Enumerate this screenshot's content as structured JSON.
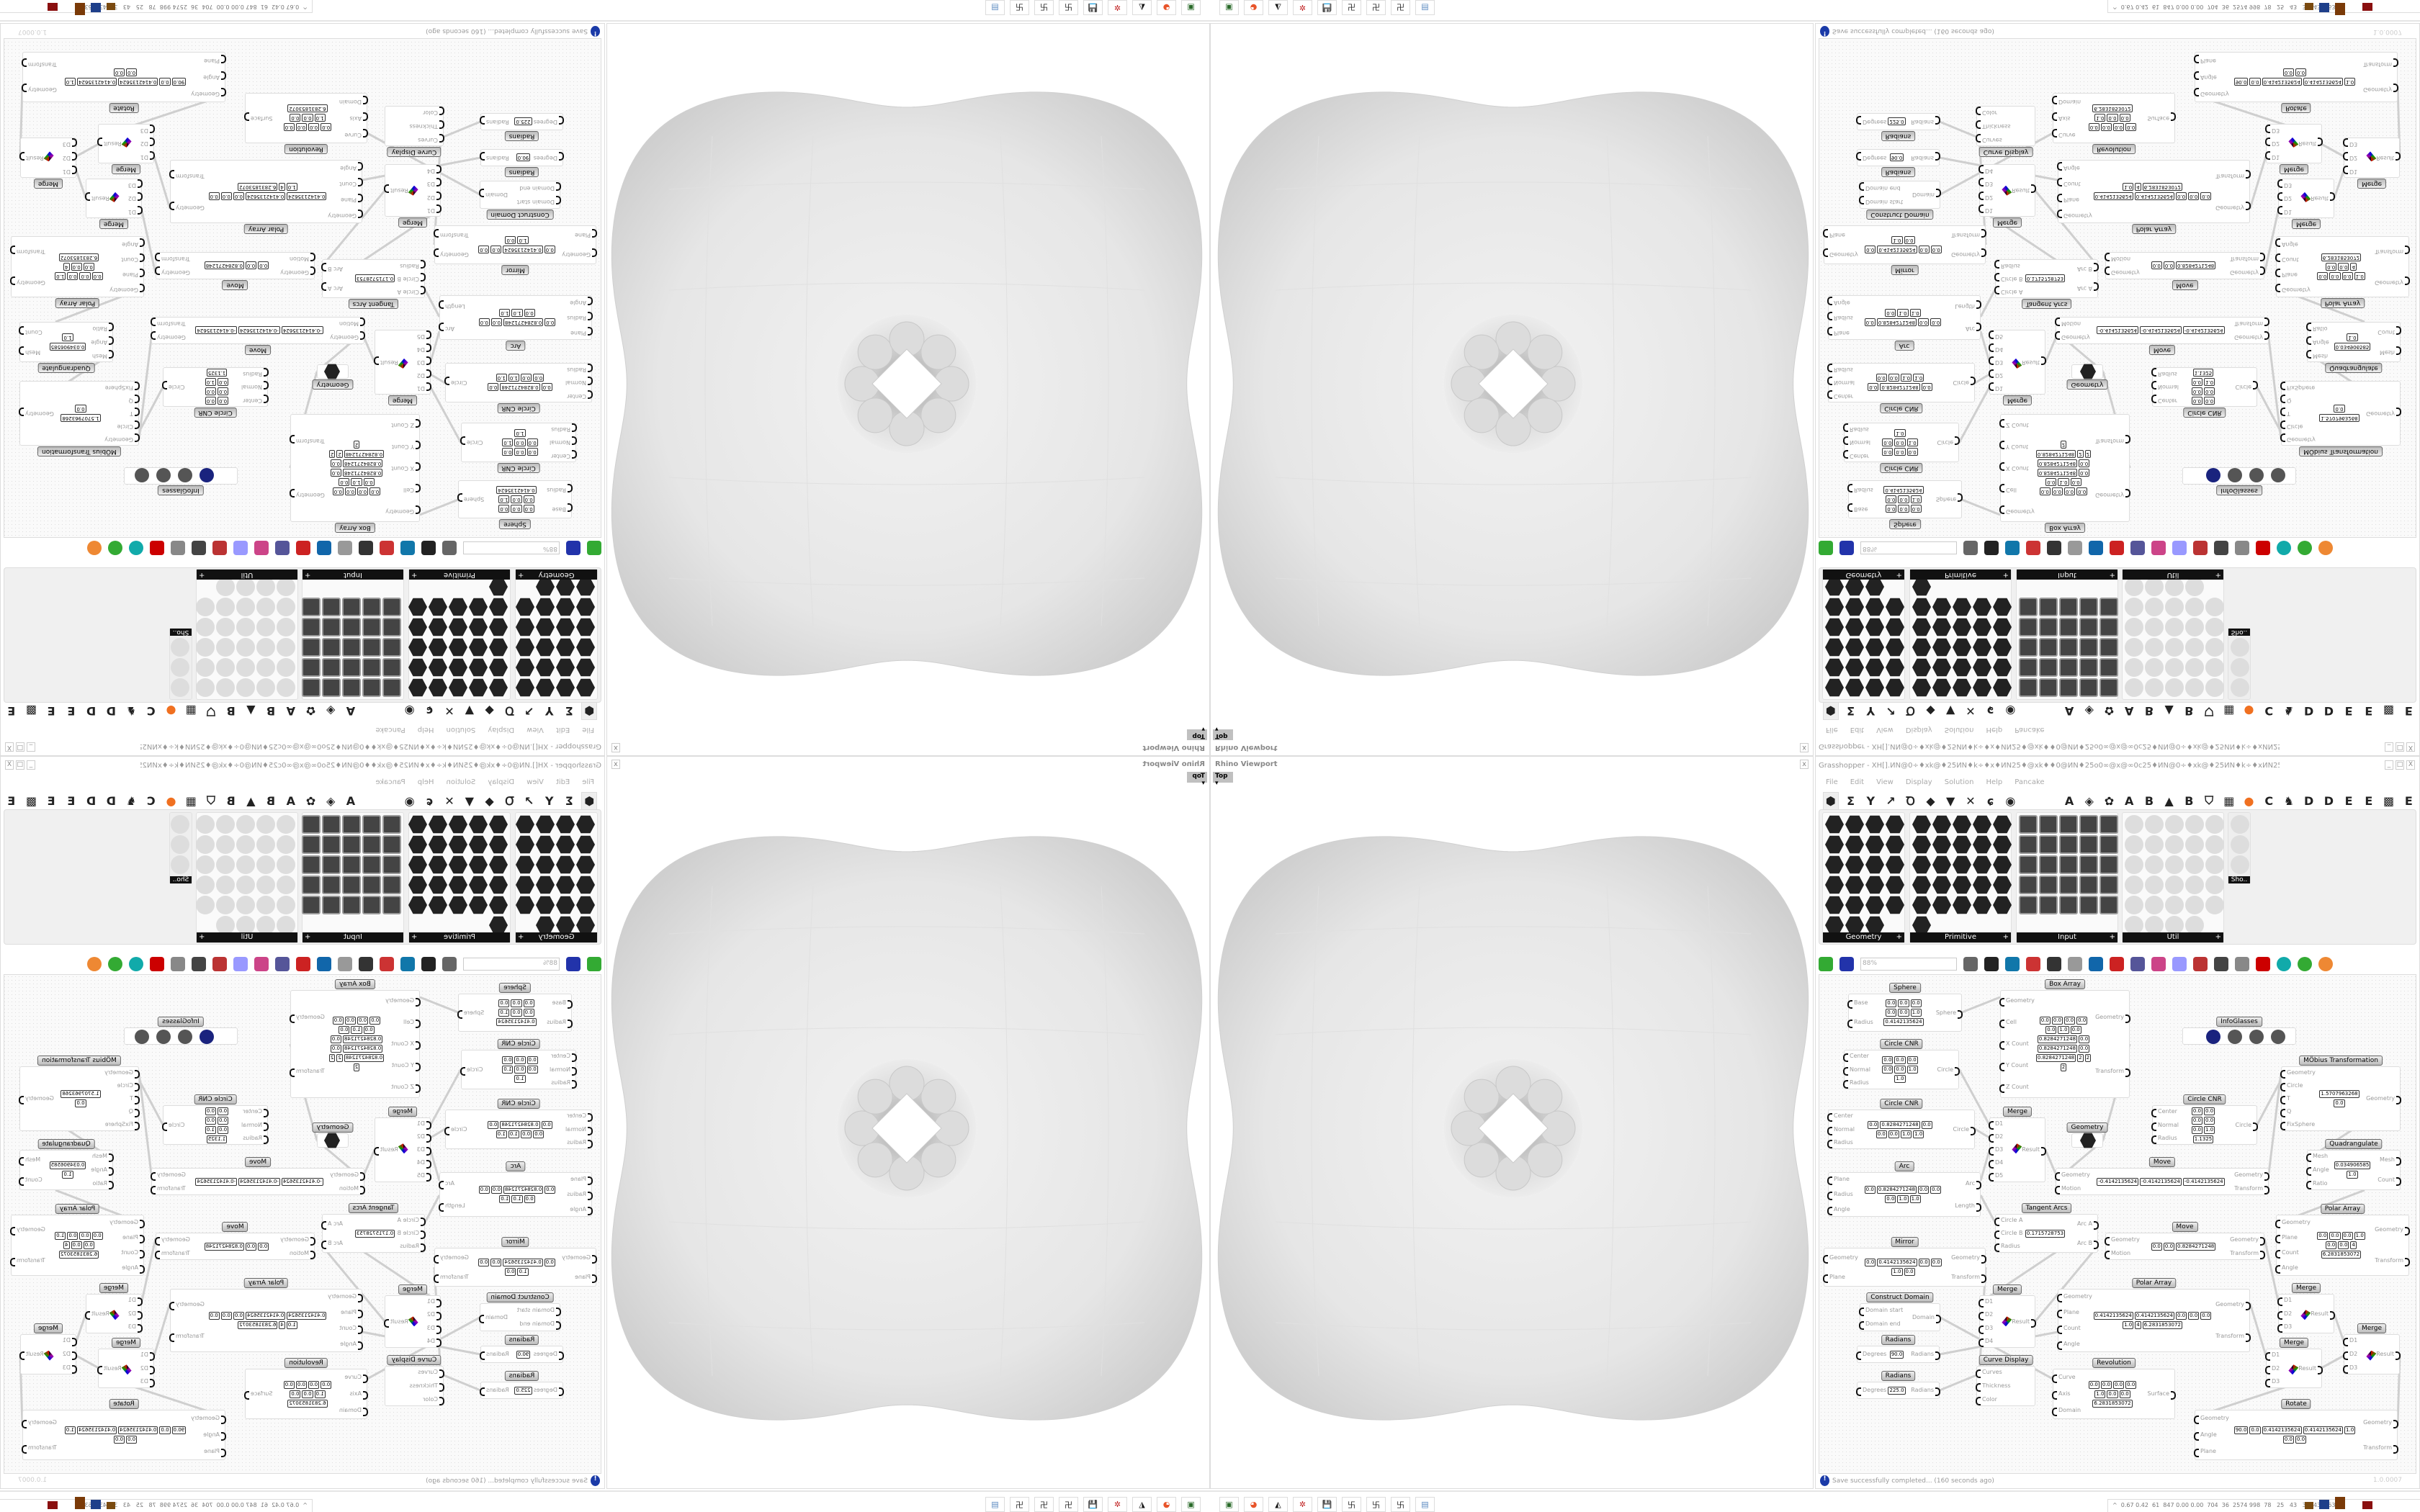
{
  "viewport": {
    "title": "Rhino Viewport",
    "view": "Top",
    "view_dropdown": "▾",
    "close": "x"
  },
  "gh": {
    "title": "Grasshopper - XH[].ИN@0÷♦xk@♦25ИN♦k÷♦x♦ИN25♦@xk♦♦0@ИN♦25o0∞@x@∞0c25♦ИN@0÷♦xk@♦25ИN♦k÷♦xИN25♦@xk♦÷0@ИN",
    "window_buttons": [
      "_",
      "□",
      "X"
    ],
    "menu": [
      "File",
      "Edit",
      "View",
      "Display",
      "Solution",
      "Help",
      "Pancake"
    ],
    "tabs": [
      {
        "icon": "params-hex-icon",
        "glyph": "⬢"
      },
      {
        "icon": "maths-sigma-icon",
        "glyph": "Σ"
      },
      {
        "icon": "sets-icon",
        "glyph": "Y"
      },
      {
        "icon": "vector-icon",
        "glyph": "↗"
      },
      {
        "icon": "curve-icon",
        "glyph": "Ꝺ"
      },
      {
        "icon": "surface-icon",
        "glyph": "◆"
      },
      {
        "icon": "mesh-icon",
        "glyph": "▼"
      },
      {
        "icon": "intersect-icon",
        "glyph": "✕"
      },
      {
        "icon": "transform-icon",
        "glyph": "ɕ"
      },
      {
        "icon": "display-icon",
        "glyph": "◉"
      },
      {
        "label": "A"
      },
      {
        "icon": "crystal-icon",
        "glyph": "◈"
      },
      {
        "icon": "puzzle-icon",
        "glyph": "✿"
      },
      {
        "label": "A"
      },
      {
        "label": "B"
      },
      {
        "icon": "mountain-icon",
        "glyph": "▲"
      },
      {
        "label": "B"
      },
      {
        "icon": "shield-icon",
        "glyph": "⛉"
      },
      {
        "icon": "grid-icon",
        "glyph": "▦"
      },
      {
        "icon": "orange-circle-icon",
        "glyph": "●",
        "color": "#f07020"
      },
      {
        "label": "C"
      },
      {
        "icon": "rooster-icon",
        "glyph": "♞"
      },
      {
        "label": "D"
      },
      {
        "label": "D"
      },
      {
        "label": "E"
      },
      {
        "label": "E"
      },
      {
        "icon": "grid-dotted-icon",
        "glyph": "▩"
      },
      {
        "label": "E"
      }
    ],
    "palette": [
      {
        "label": "Geometry",
        "style": "hex",
        "icons": [
          "box",
          "line",
          "point",
          "spiral",
          "x",
          "plane",
          "brep",
          "field",
          "vector",
          "rect",
          "text-tag",
          "signal",
          "circle",
          "cube",
          "cap",
          "group",
          "arc",
          "surface",
          "mesh",
          "graph",
          "twisted",
          "lattice",
          "magnet"
        ]
      },
      {
        "label": "Primitive",
        "style": "hex",
        "icons": [
          "boolean",
          "star",
          "matrix",
          "arc2",
          "path",
          "net",
          "fan",
          "clock",
          "map",
          "photo",
          "scissors",
          "ucs",
          "hexfill",
          "gear",
          "seven",
          "tree-line",
          "tree",
          "shape",
          "decimal",
          "hash",
          "complex",
          "file",
          "letter-a",
          "id",
          "sphere",
          "dome"
        ]
      },
      {
        "label": "Input",
        "style": "sq",
        "icons": [
          "import",
          "square",
          "gem",
          "3dm",
          "object",
          "gradient-yellow",
          "gumball",
          "paint",
          "xyz",
          "toggle",
          "swatch",
          "color-wheel",
          "img",
          "button",
          "checker",
          "graph-mapper",
          "pdb",
          "slider",
          "calendar",
          "control-knob",
          "shp",
          "list",
          "clock",
          "spectrum",
          "id-tag"
        ]
      },
      {
        "label": "Util",
        "style": "util",
        "icons": [
          "cherry",
          "magnet",
          "arrow",
          "c-script",
          "a-script",
          "play",
          "rec",
          "search",
          "swirl",
          "eye",
          "axes",
          "pen",
          "timer",
          "seven",
          "flask",
          "tree",
          "field",
          "egg",
          "path",
          "fx",
          "lasso",
          "rotate",
          "pr",
          "decimal",
          "palette",
          "abc",
          "arrow-right",
          "gauge",
          "cross"
        ]
      },
      {
        "label": "Sho..",
        "style": "util",
        "icons": [
          "goggles",
          "goggles2",
          "presenter"
        ]
      }
    ],
    "toolbar": {
      "zoom": "88%",
      "icons": [
        "new-file",
        "save",
        "zoom-extents",
        "preview-eye",
        "sketch-pen",
        "bracket",
        "at-sign",
        "gha",
        "canvas",
        "search-s",
        "package",
        "bulb",
        "twist",
        "bell",
        "chain",
        "gem-red",
        "teal-shape",
        "green-leaf",
        "half-sphere",
        "blue-sphere"
      ]
    },
    "nodes": [
      {
        "title": "Sphere",
        "inputs": [
          "Base",
          "Radius"
        ],
        "outputs": [
          "Sphere"
        ],
        "fields": [
          "0.0",
          "0.0",
          "0.0",
          "0.0",
          "0.0",
          "1.0",
          "0.4142135624"
        ]
      },
      {
        "title": "Circle CNR",
        "inputs": [
          "Center",
          "Normal",
          "Radius"
        ],
        "outputs": [
          "Circle"
        ],
        "fields": [
          "0.0",
          "0.0",
          "0.0",
          "0.0",
          "0.0",
          "1.0",
          "1.0"
        ]
      },
      {
        "title": "Circle CNR",
        "inputs": [
          "Center",
          "Normal",
          "Radius"
        ],
        "outputs": [
          "Circle"
        ],
        "fields": [
          "0.0",
          "0.8284271248",
          "0.0",
          "0.0",
          "0.0",
          "1.0",
          "1.0"
        ]
      },
      {
        "title": "Arc",
        "inputs": [
          "Plane",
          "Radius",
          "Angle"
        ],
        "outputs": [
          "Arc",
          "Length"
        ],
        "fields": [
          "0.0",
          "0.8284271248",
          "0.0",
          "0.0",
          "0.0",
          "1.0",
          "1.0"
        ]
      },
      {
        "title": "Box Array",
        "inputs": [
          "Geometry",
          "Cell",
          "X Count",
          "Y Count",
          "Z Count"
        ],
        "outputs": [
          "Geometry",
          "Transform"
        ],
        "fields": [
          "0.0",
          "0.0",
          "0.0",
          "0.0",
          "0.0",
          "1.0",
          "0.0",
          "0.8284271248",
          "0.0",
          "0.8284271248",
          "0.0",
          "0.8284271248",
          "2",
          "2",
          "2"
        ]
      },
      {
        "title": "Merge",
        "inputs": [
          "D1",
          "D2",
          "D3",
          "D4",
          "D5"
        ],
        "outputs": [
          "Result"
        ],
        "fields": []
      },
      {
        "title": "Geometry",
        "inputs": [],
        "outputs": [],
        "fields": []
      },
      {
        "title": "Move",
        "inputs": [
          "Geometry",
          "Motion"
        ],
        "outputs": [
          "Geometry",
          "Transform"
        ],
        "fields": [
          "-0.4142135624",
          "-0.4142135624",
          "-0.4142135624"
        ]
      },
      {
        "title": "InfoGlasses",
        "inputs": [],
        "outputs": [],
        "fields": []
      },
      {
        "title": "Circle CNR",
        "inputs": [
          "Center",
          "Normal",
          "Radius"
        ],
        "outputs": [
          "Circle"
        ],
        "fields": [
          "0.0",
          "0.0",
          "0.0",
          "0.0",
          "0.0",
          "1.0",
          "1.1325"
        ]
      },
      {
        "title": "MÖbius Transformation",
        "inputs": [
          "Geometry",
          "Circle",
          "T",
          "Q",
          "FixSphere"
        ],
        "outputs": [
          "Geometry"
        ],
        "fields": [
          "1.5707963268",
          "0.0"
        ]
      },
      {
        "title": "Quadrangulate",
        "inputs": [
          "Mesh",
          "Angle",
          "Ratio"
        ],
        "outputs": [
          "Mesh",
          "Count"
        ],
        "fields": [
          "0.034906585",
          "1.0"
        ]
      },
      {
        "title": "Polar Array",
        "inputs": [
          "Geometry",
          "Plane",
          "Count",
          "Angle"
        ],
        "outputs": [
          "Geometry",
          "Transform"
        ],
        "fields": [
          "0.0",
          "0.0",
          "0.0",
          "1.0",
          "0.0",
          "0.0",
          "4",
          "6.2831853072"
        ]
      },
      {
        "title": "Tangent Arcs",
        "inputs": [
          "Circle A",
          "Circle B",
          "Radius"
        ],
        "outputs": [
          "Arc A",
          "Arc B"
        ],
        "fields": [
          "0.1715728753"
        ]
      },
      {
        "title": "Move",
        "inputs": [
          "Geometry",
          "Motion"
        ],
        "outputs": [
          "Geometry",
          "Transform"
        ],
        "fields": [
          "0.0",
          "0.0",
          "0.8284271248"
        ]
      },
      {
        "title": "Mirror",
        "inputs": [
          "Geometry",
          "Plane"
        ],
        "outputs": [
          "Geometry",
          "Transform"
        ],
        "fields": [
          "0.0",
          "0.4142135624",
          "0.0",
          "0.0",
          "1.0",
          "0.0"
        ]
      },
      {
        "title": "Construct Domain",
        "inputs": [
          "Domain start",
          "Domain end"
        ],
        "outputs": [
          "Domain"
        ],
        "fields": []
      },
      {
        "title": "Radians",
        "inputs": [
          "Degrees"
        ],
        "outputs": [
          "Radians"
        ],
        "fields": [
          "90.0"
        ]
      },
      {
        "title": "Radians",
        "inputs": [
          "Degrees"
        ],
        "outputs": [
          "Radians"
        ],
        "fields": [
          "225.0"
        ]
      },
      {
        "title": "Merge",
        "inputs": [
          "D1",
          "D2",
          "D3",
          "D4"
        ],
        "outputs": [
          "Result"
        ],
        "fields": []
      },
      {
        "title": "Curve Display",
        "inputs": [
          "Curves",
          "Thickness",
          "Color"
        ],
        "outputs": [],
        "fields": []
      },
      {
        "title": "Polar Array",
        "inputs": [
          "Geometry",
          "Plane",
          "Count",
          "Angle"
        ],
        "outputs": [
          "Geometry",
          "Transform"
        ],
        "fields": [
          "0.4142135624",
          "0.4142135624",
          "0.0",
          "0.0",
          "0.0",
          "1.0",
          "4",
          "6.2831853072"
        ]
      },
      {
        "title": "Revolution",
        "inputs": [
          "Curve",
          "Axis",
          "Domain"
        ],
        "outputs": [
          "Surface"
        ],
        "fields": [
          "0.0",
          "0.0",
          "0.0",
          "0.0",
          "1.0",
          "0.0",
          "0.0",
          "6.2831853072"
        ]
      },
      {
        "title": "Merge",
        "inputs": [
          "D1",
          "D2",
          "D3"
        ],
        "outputs": [
          "Result"
        ],
        "fields": []
      },
      {
        "title": "Merge",
        "inputs": [
          "D1",
          "D2",
          "D3"
        ],
        "outputs": [
          "Result"
        ],
        "fields": []
      },
      {
        "title": "Merge",
        "inputs": [
          "D1",
          "D2",
          "D3"
        ],
        "outputs": [
          "Result"
        ],
        "fields": []
      },
      {
        "title": "Rotate",
        "inputs": [
          "Geometry",
          "Angle",
          "Plane"
        ],
        "outputs": [
          "Geometry",
          "Transform"
        ],
        "fields": [
          "90.0",
          "0.0",
          "0.4142135624",
          "0.4142135624",
          "1.0",
          "0.0",
          "0.0"
        ]
      }
    ],
    "status": {
      "message": "Save successfully completed... (160 seconds ago)",
      "version": "1.0.0007"
    }
  },
  "taskbar": {
    "apps": [
      {
        "name": "terminal",
        "glyph": "▣",
        "color": "#2a6a2a"
      },
      {
        "name": "firefox",
        "glyph": "◕",
        "color": "#e8542a"
      },
      {
        "name": "inkscape",
        "glyph": "◭",
        "color": "#111"
      },
      {
        "name": "red-app",
        "glyph": "✲",
        "color": "#c02020"
      },
      {
        "name": "floppy-64",
        "glyph": "💾",
        "color": "#2020a0"
      },
      {
        "name": "window-1",
        "glyph": "卐",
        "color": "#222"
      },
      {
        "name": "window-2",
        "glyph": "卐",
        "color": "#222"
      },
      {
        "name": "window-3",
        "glyph": "卐",
        "color": "#222"
      },
      {
        "name": "calculator",
        "glyph": "▤",
        "color": "#5a8ac0"
      }
    ],
    "readout": "^  0.67 0.42  61  847 0.00 0.00  704  36  2574 998  78   25   43   35  43346367"
  }
}
